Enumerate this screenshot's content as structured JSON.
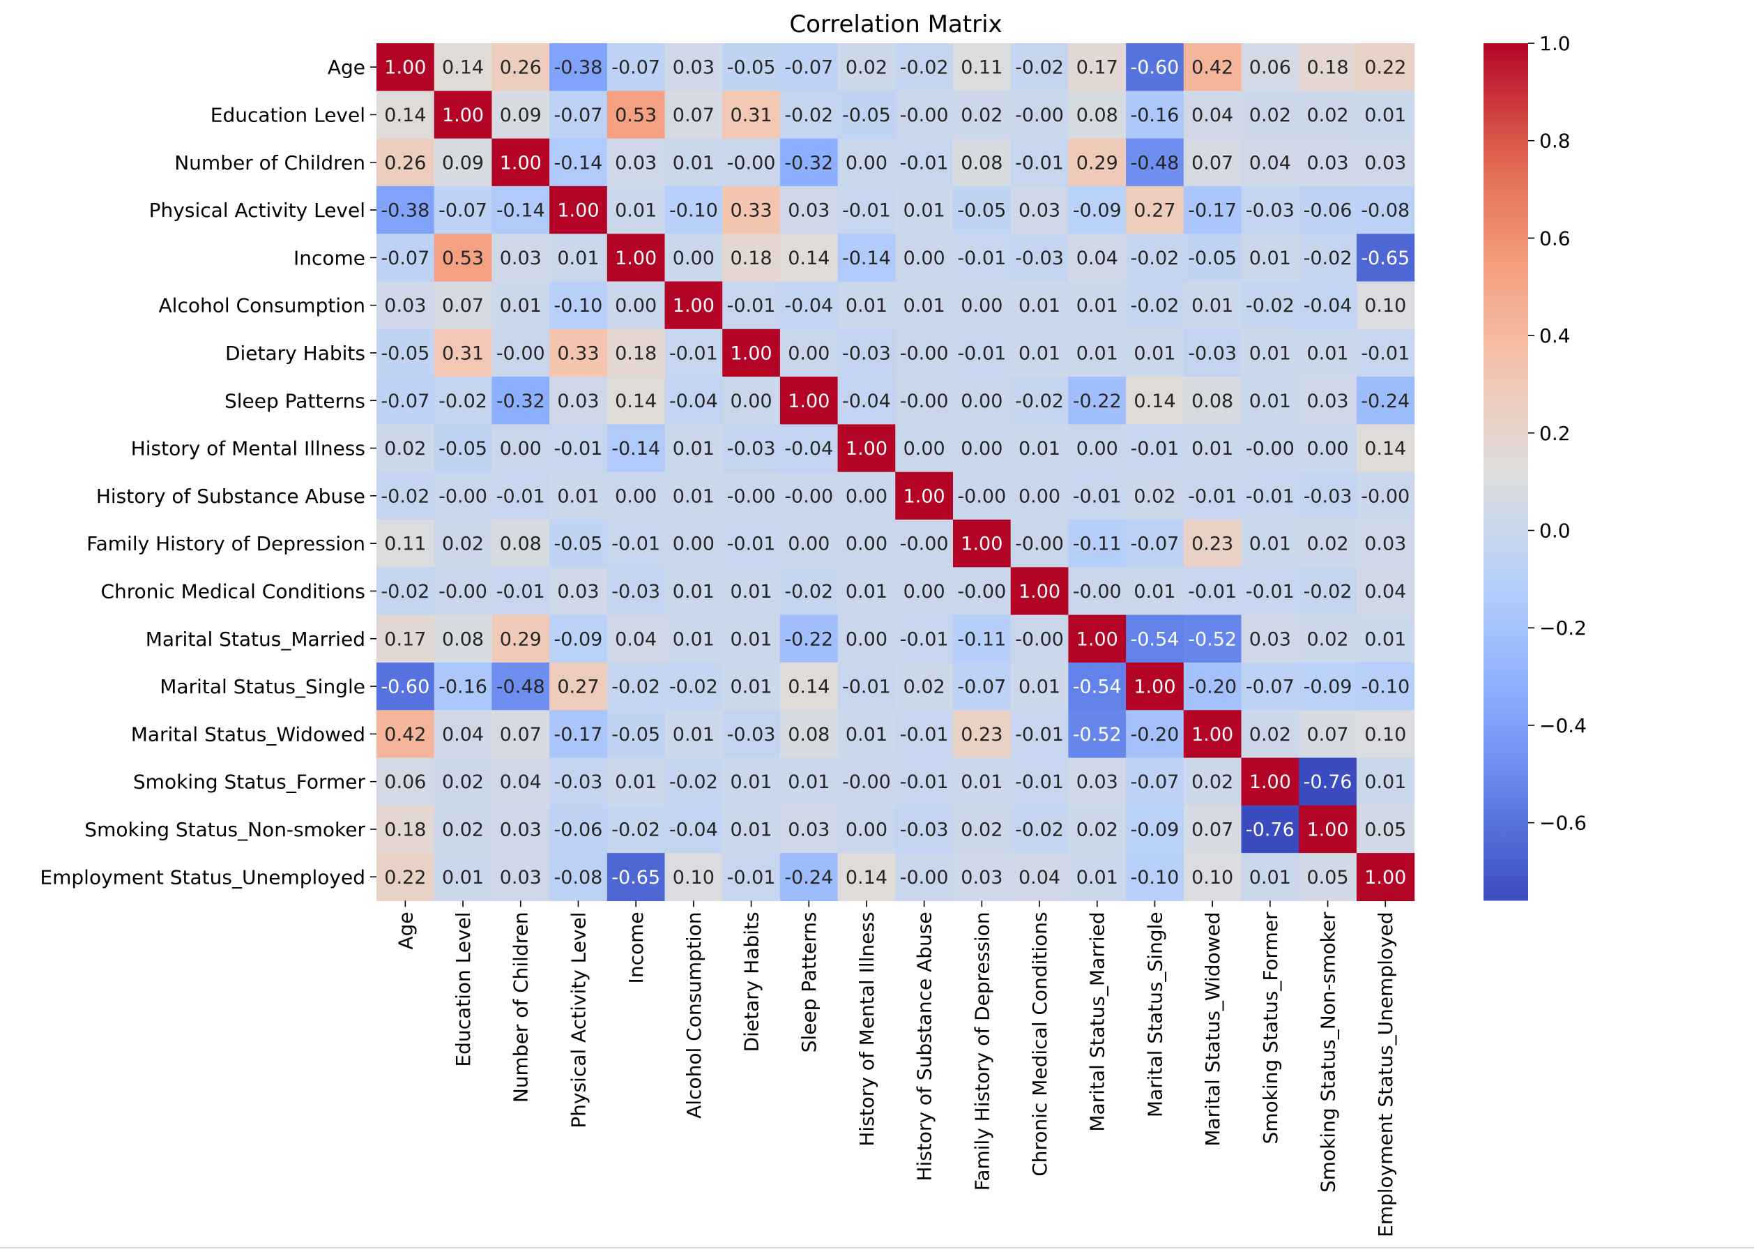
{
  "chart_data": {
    "type": "heatmap",
    "title": "Correlation Matrix",
    "xlabel": "",
    "ylabel": "",
    "colormap": "coolwarm",
    "vmin": -0.76,
    "vmax": 1.0,
    "colorbar_ticks": [
      1.0,
      0.8,
      0.6,
      0.4,
      0.2,
      0.0,
      -0.2,
      -0.4,
      -0.6
    ],
    "colorbar_tick_labels": [
      "1.0",
      "0.8",
      "0.6",
      "0.4",
      "0.2",
      "0.0",
      "−0.2",
      "−0.4",
      "−0.6"
    ],
    "labels": [
      "Age",
      "Education Level",
      "Number of Children",
      "Physical Activity Level",
      "Income",
      "Alcohol Consumption",
      "Dietary Habits",
      "Sleep Patterns",
      "History of Mental Illness",
      "History of Substance Abuse",
      "Family History of Depression",
      "Chronic Medical Conditions",
      "Marital Status_Married",
      "Marital Status_Single",
      "Marital Status_Widowed",
      "Smoking Status_Former",
      "Smoking Status_Non-smoker",
      "Employment Status_Unemployed"
    ],
    "cell_text": [
      [
        "1.00",
        "0.14",
        "0.26",
        "-0.38",
        "-0.07",
        "0.03",
        "-0.05",
        "-0.07",
        "0.02",
        "-0.02",
        "0.11",
        "-0.02",
        "0.17",
        "-0.60",
        "0.42",
        "0.06",
        "0.18",
        "0.22"
      ],
      [
        "0.14",
        "1.00",
        "0.09",
        "-0.07",
        "0.53",
        "0.07",
        "0.31",
        "-0.02",
        "-0.05",
        "-0.00",
        "0.02",
        "-0.00",
        "0.08",
        "-0.16",
        "0.04",
        "0.02",
        "0.02",
        "0.01"
      ],
      [
        "0.26",
        "0.09",
        "1.00",
        "-0.14",
        "0.03",
        "0.01",
        "-0.00",
        "-0.32",
        "0.00",
        "-0.01",
        "0.08",
        "-0.01",
        "0.29",
        "-0.48",
        "0.07",
        "0.04",
        "0.03",
        "0.03"
      ],
      [
        "-0.38",
        "-0.07",
        "-0.14",
        "1.00",
        "0.01",
        "-0.10",
        "0.33",
        "0.03",
        "-0.01",
        "0.01",
        "-0.05",
        "0.03",
        "-0.09",
        "0.27",
        "-0.17",
        "-0.03",
        "-0.06",
        "-0.08"
      ],
      [
        "-0.07",
        "0.53",
        "0.03",
        "0.01",
        "1.00",
        "0.00",
        "0.18",
        "0.14",
        "-0.14",
        "0.00",
        "-0.01",
        "-0.03",
        "0.04",
        "-0.02",
        "-0.05",
        "0.01",
        "-0.02",
        "-0.65"
      ],
      [
        "0.03",
        "0.07",
        "0.01",
        "-0.10",
        "0.00",
        "1.00",
        "-0.01",
        "-0.04",
        "0.01",
        "0.01",
        "0.00",
        "0.01",
        "0.01",
        "-0.02",
        "0.01",
        "-0.02",
        "-0.04",
        "0.10"
      ],
      [
        "-0.05",
        "0.31",
        "-0.00",
        "0.33",
        "0.18",
        "-0.01",
        "1.00",
        "0.00",
        "-0.03",
        "-0.00",
        "-0.01",
        "0.01",
        "0.01",
        "0.01",
        "-0.03",
        "0.01",
        "0.01",
        "-0.01"
      ],
      [
        "-0.07",
        "-0.02",
        "-0.32",
        "0.03",
        "0.14",
        "-0.04",
        "0.00",
        "1.00",
        "-0.04",
        "-0.00",
        "0.00",
        "-0.02",
        "-0.22",
        "0.14",
        "0.08",
        "0.01",
        "0.03",
        "-0.24"
      ],
      [
        "0.02",
        "-0.05",
        "0.00",
        "-0.01",
        "-0.14",
        "0.01",
        "-0.03",
        "-0.04",
        "1.00",
        "0.00",
        "0.00",
        "0.01",
        "0.00",
        "-0.01",
        "0.01",
        "-0.00",
        "0.00",
        "0.14"
      ],
      [
        "-0.02",
        "-0.00",
        "-0.01",
        "0.01",
        "0.00",
        "0.01",
        "-0.00",
        "-0.00",
        "0.00",
        "1.00",
        "-0.00",
        "0.00",
        "-0.01",
        "0.02",
        "-0.01",
        "-0.01",
        "-0.03",
        "-0.00"
      ],
      [
        "0.11",
        "0.02",
        "0.08",
        "-0.05",
        "-0.01",
        "0.00",
        "-0.01",
        "0.00",
        "0.00",
        "-0.00",
        "1.00",
        "-0.00",
        "-0.11",
        "-0.07",
        "0.23",
        "0.01",
        "0.02",
        "0.03"
      ],
      [
        "-0.02",
        "-0.00",
        "-0.01",
        "0.03",
        "-0.03",
        "0.01",
        "0.01",
        "-0.02",
        "0.01",
        "0.00",
        "-0.00",
        "1.00",
        "-0.00",
        "0.01",
        "-0.01",
        "-0.01",
        "-0.02",
        "0.04"
      ],
      [
        "0.17",
        "0.08",
        "0.29",
        "-0.09",
        "0.04",
        "0.01",
        "0.01",
        "-0.22",
        "0.00",
        "-0.01",
        "-0.11",
        "-0.00",
        "1.00",
        "-0.54",
        "-0.52",
        "0.03",
        "0.02",
        "0.01"
      ],
      [
        "-0.60",
        "-0.16",
        "-0.48",
        "0.27",
        "-0.02",
        "-0.02",
        "0.01",
        "0.14",
        "-0.01",
        "0.02",
        "-0.07",
        "0.01",
        "-0.54",
        "1.00",
        "-0.20",
        "-0.07",
        "-0.09",
        "-0.10"
      ],
      [
        "0.42",
        "0.04",
        "0.07",
        "-0.17",
        "-0.05",
        "0.01",
        "-0.03",
        "0.08",
        "0.01",
        "-0.01",
        "0.23",
        "-0.01",
        "-0.52",
        "-0.20",
        "1.00",
        "0.02",
        "0.07",
        "0.10"
      ],
      [
        "0.06",
        "0.02",
        "0.04",
        "-0.03",
        "0.01",
        "-0.02",
        "0.01",
        "0.01",
        "-0.00",
        "-0.01",
        "0.01",
        "-0.01",
        "0.03",
        "-0.07",
        "0.02",
        "1.00",
        "-0.76",
        "0.01"
      ],
      [
        "0.18",
        "0.02",
        "0.03",
        "-0.06",
        "-0.02",
        "-0.04",
        "0.01",
        "0.03",
        "0.00",
        "-0.03",
        "0.02",
        "-0.02",
        "0.02",
        "-0.09",
        "0.07",
        "-0.76",
        "1.00",
        "0.05"
      ],
      [
        "0.22",
        "0.01",
        "0.03",
        "-0.08",
        "-0.65",
        "0.10",
        "-0.01",
        "-0.24",
        "0.14",
        "-0.00",
        "0.03",
        "0.04",
        "0.01",
        "-0.10",
        "0.10",
        "0.01",
        "0.05",
        "1.00"
      ]
    ]
  }
}
